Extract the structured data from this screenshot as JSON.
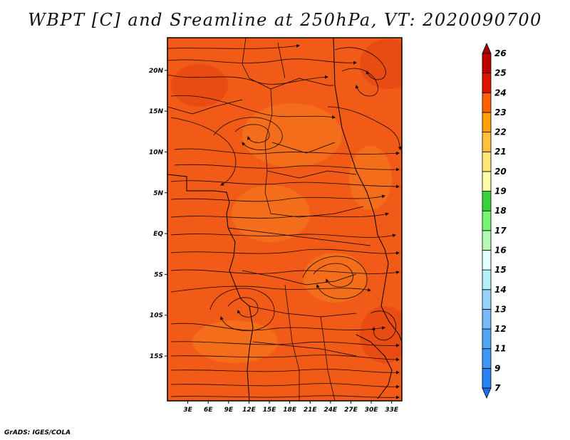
{
  "title": "WBPT [C] and Sreamline at 250hPa, VT: 2020090700",
  "footer": "GrADS: IGES/COLA",
  "map": {
    "variable": "WBPT [C]",
    "level": "250hPa",
    "valid_time": "2020090700",
    "lon_range": [
      0,
      34.5
    ],
    "lat_range": [
      -20.5,
      24
    ],
    "background_color": "#f25a17",
    "lat_ticks": [
      {
        "value": 20,
        "label": "20N"
      },
      {
        "value": 15,
        "label": "15N"
      },
      {
        "value": 10,
        "label": "10N"
      },
      {
        "value": 5,
        "label": "5N"
      },
      {
        "value": 0,
        "label": "EQ"
      },
      {
        "value": -5,
        "label": "5S"
      },
      {
        "value": -10,
        "label": "10S"
      },
      {
        "value": -15,
        "label": "15S"
      }
    ],
    "lon_ticks": [
      {
        "value": 3,
        "label": "3E"
      },
      {
        "value": 6,
        "label": "6E"
      },
      {
        "value": 9,
        "label": "9E"
      },
      {
        "value": 12,
        "label": "12E"
      },
      {
        "value": 15,
        "label": "15E"
      },
      {
        "value": 18,
        "label": "18E"
      },
      {
        "value": 21,
        "label": "21E"
      },
      {
        "value": 24,
        "label": "24E"
      },
      {
        "value": 27,
        "label": "27E"
      },
      {
        "value": 30,
        "label": "30E"
      },
      {
        "value": 33,
        "label": "33E"
      }
    ]
  },
  "colorbar": {
    "levels": [
      "7",
      "9",
      "11",
      "12",
      "13",
      "14",
      "15",
      "16",
      "17",
      "18",
      "19",
      "20",
      "21",
      "22",
      "23",
      "24",
      "25",
      "26"
    ],
    "colors": [
      "#1e6eeb",
      "#2882f0",
      "#3c96f5",
      "#50a5f5",
      "#78b9fa",
      "#96d2fa",
      "#b4f0fa",
      "#e1ffff",
      "#b4fab4",
      "#78f573",
      "#37d23c",
      "#fffaaa",
      "#ffe878",
      "#ffc03c",
      "#ffa000",
      "#ff6000",
      "#e11400",
      "#c00000",
      "#a50000"
    ]
  }
}
